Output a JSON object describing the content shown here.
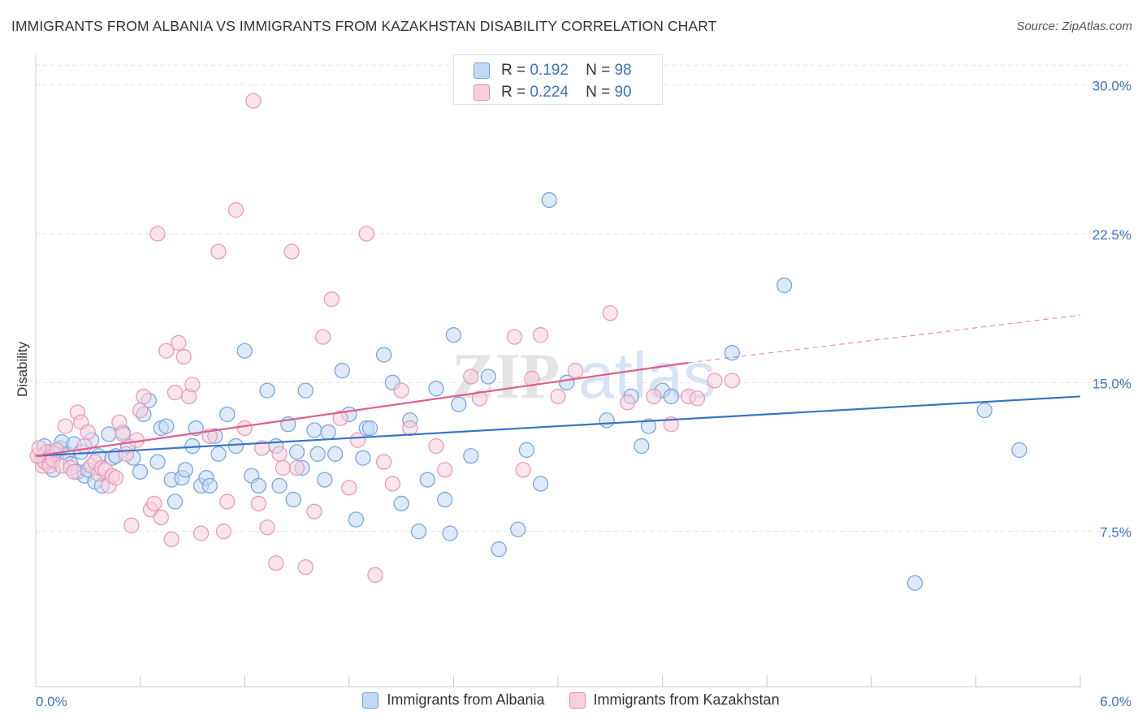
{
  "title": "IMMIGRANTS FROM ALBANIA VS IMMIGRANTS FROM KAZAKHSTAN DISABILITY CORRELATION CHART",
  "source": "Source: ZipAtlas.com",
  "watermark": {
    "zip": "ZIP",
    "atlas": "atlas"
  },
  "stats": [
    {
      "r_label": "R =",
      "r": "0.192",
      "n_label": "N =",
      "n": "98",
      "color": "#6a9fe0",
      "fill": "#c3d8f5"
    },
    {
      "r_label": "R =",
      "r": "0.224",
      "n_label": "N =",
      "n": "90",
      "color": "#e88aa8",
      "fill": "#f8cfdc"
    }
  ],
  "legend": [
    {
      "label": "Immigrants from Albania",
      "color": "#6a9fe0",
      "fill": "#c3d8f5"
    },
    {
      "label": "Immigrants from Kazakhstan",
      "color": "#e88aa8",
      "fill": "#f8cfdc"
    }
  ],
  "chart_data": {
    "type": "scatter",
    "title": "IMMIGRANTS FROM ALBANIA VS IMMIGRANTS FROM KAZAKHSTAN DISABILITY CORRELATION CHART",
    "xlabel": "",
    "ylabel": "Disability",
    "xlim": [
      0,
      6
    ],
    "ylim": [
      0,
      31.5
    ],
    "x_tick_labels": [
      "0.0%",
      "6.0%"
    ],
    "y_ticks": [
      7.5,
      15.0,
      22.5,
      30.0
    ],
    "y_tick_labels": [
      "7.5%",
      "15.0%",
      "22.5%",
      "30.0%"
    ],
    "grid": true,
    "legend_position": "bottom",
    "series": [
      {
        "name": "Immigrants from Albania",
        "color": "#3a73c4",
        "fill": "#c3d8f5",
        "trend": {
          "x": [
            0.0,
            6.0
          ],
          "y": [
            11.3,
            14.3
          ],
          "style": "solid"
        },
        "points": [
          [
            0.04,
            11.3
          ],
          [
            0.05,
            11.8
          ],
          [
            0.06,
            11.0
          ],
          [
            0.07,
            11.5
          ],
          [
            0.08,
            11.2
          ],
          [
            0.09,
            11.0
          ],
          [
            0.1,
            10.6
          ],
          [
            0.12,
            11.4
          ],
          [
            0.14,
            11.7
          ],
          [
            0.15,
            12.0
          ],
          [
            0.18,
            11.4
          ],
          [
            0.2,
            10.9
          ],
          [
            0.22,
            11.9
          ],
          [
            0.24,
            10.5
          ],
          [
            0.26,
            11.5
          ],
          [
            0.28,
            10.3
          ],
          [
            0.3,
            10.6
          ],
          [
            0.32,
            12.1
          ],
          [
            0.34,
            10.0
          ],
          [
            0.36,
            11.3
          ],
          [
            0.38,
            9.8
          ],
          [
            0.42,
            12.4
          ],
          [
            0.44,
            11.2
          ],
          [
            0.46,
            11.3
          ],
          [
            0.5,
            12.5
          ],
          [
            0.53,
            11.8
          ],
          [
            0.56,
            11.2
          ],
          [
            0.6,
            10.5
          ],
          [
            0.62,
            13.4
          ],
          [
            0.65,
            14.1
          ],
          [
            0.7,
            11.0
          ],
          [
            0.72,
            12.7
          ],
          [
            0.75,
            12.8
          ],
          [
            0.78,
            10.1
          ],
          [
            0.8,
            9.0
          ],
          [
            0.84,
            10.2
          ],
          [
            0.86,
            10.6
          ],
          [
            0.9,
            11.8
          ],
          [
            0.92,
            12.7
          ],
          [
            0.95,
            9.8
          ],
          [
            0.98,
            10.2
          ],
          [
            1.0,
            9.8
          ],
          [
            1.03,
            12.3
          ],
          [
            1.05,
            11.4
          ],
          [
            1.1,
            13.4
          ],
          [
            1.15,
            11.8
          ],
          [
            1.2,
            16.6
          ],
          [
            1.24,
            10.3
          ],
          [
            1.28,
            9.8
          ],
          [
            1.33,
            14.6
          ],
          [
            1.38,
            11.8
          ],
          [
            1.4,
            9.8
          ],
          [
            1.45,
            12.9
          ],
          [
            1.48,
            9.1
          ],
          [
            1.5,
            11.5
          ],
          [
            1.53,
            10.7
          ],
          [
            1.55,
            14.6
          ],
          [
            1.6,
            12.6
          ],
          [
            1.62,
            11.4
          ],
          [
            1.66,
            10.1
          ],
          [
            1.68,
            12.5
          ],
          [
            1.72,
            11.4
          ],
          [
            1.76,
            15.6
          ],
          [
            1.8,
            13.4
          ],
          [
            1.84,
            8.1
          ],
          [
            1.88,
            11.2
          ],
          [
            1.9,
            12.7
          ],
          [
            1.92,
            12.7
          ],
          [
            2.0,
            16.4
          ],
          [
            2.05,
            15.0
          ],
          [
            2.1,
            8.9
          ],
          [
            2.15,
            13.1
          ],
          [
            2.2,
            7.5
          ],
          [
            2.25,
            10.1
          ],
          [
            2.3,
            14.7
          ],
          [
            2.35,
            9.1
          ],
          [
            2.38,
            7.4
          ],
          [
            2.4,
            17.4
          ],
          [
            2.43,
            13.9
          ],
          [
            2.5,
            11.3
          ],
          [
            2.6,
            15.3
          ],
          [
            2.66,
            6.6
          ],
          [
            2.77,
            7.6
          ],
          [
            2.82,
            11.6
          ],
          [
            2.9,
            9.9
          ],
          [
            2.95,
            24.2
          ],
          [
            3.05,
            15.0
          ],
          [
            3.28,
            13.1
          ],
          [
            3.42,
            14.3
          ],
          [
            3.48,
            11.8
          ],
          [
            3.52,
            12.8
          ],
          [
            3.6,
            14.6
          ],
          [
            3.65,
            14.3
          ],
          [
            4.0,
            16.5
          ],
          [
            4.3,
            19.9
          ],
          [
            5.05,
            4.9
          ],
          [
            5.45,
            13.6
          ],
          [
            5.65,
            11.6
          ]
        ]
      },
      {
        "name": "Immigrants from Kazakhstan",
        "color": "#e05f8a",
        "fill": "#f8cfdc",
        "trend": {
          "x": [
            0.0,
            3.75
          ],
          "y": [
            11.3,
            16.0
          ],
          "style": "solid",
          "dashed_extension": {
            "x": [
              3.75,
              6.0
            ],
            "y": [
              16.0,
              18.4
            ]
          }
        },
        "points": [
          [
            0.03,
            11.2
          ],
          [
            0.04,
            10.8
          ],
          [
            0.05,
            11.0
          ],
          [
            0.06,
            11.5
          ],
          [
            0.08,
            10.8
          ],
          [
            0.1,
            11.1
          ],
          [
            0.12,
            11.6
          ],
          [
            0.15,
            10.8
          ],
          [
            0.17,
            12.8
          ],
          [
            0.2,
            10.7
          ],
          [
            0.22,
            10.5
          ],
          [
            0.24,
            13.5
          ],
          [
            0.26,
            13.0
          ],
          [
            0.28,
            11.8
          ],
          [
            0.3,
            12.5
          ],
          [
            0.32,
            10.8
          ],
          [
            0.34,
            11.0
          ],
          [
            0.36,
            10.4
          ],
          [
            0.38,
            10.7
          ],
          [
            0.4,
            10.6
          ],
          [
            0.42,
            9.8
          ],
          [
            0.44,
            10.3
          ],
          [
            0.46,
            10.2
          ],
          [
            0.48,
            13.0
          ],
          [
            0.5,
            12.4
          ],
          [
            0.52,
            11.4
          ],
          [
            0.55,
            7.8
          ],
          [
            0.58,
            12.1
          ],
          [
            0.6,
            13.6
          ],
          [
            0.62,
            14.3
          ],
          [
            0.66,
            8.6
          ],
          [
            0.68,
            8.9
          ],
          [
            0.7,
            22.5
          ],
          [
            0.72,
            8.2
          ],
          [
            0.75,
            16.6
          ],
          [
            0.78,
            7.1
          ],
          [
            0.8,
            14.5
          ],
          [
            0.82,
            17.0
          ],
          [
            0.85,
            16.3
          ],
          [
            0.88,
            14.3
          ],
          [
            0.9,
            14.9
          ],
          [
            0.95,
            7.4
          ],
          [
            1.0,
            12.3
          ],
          [
            1.05,
            21.6
          ],
          [
            1.08,
            7.5
          ],
          [
            1.1,
            9.0
          ],
          [
            1.15,
            23.7
          ],
          [
            1.2,
            12.7
          ],
          [
            1.25,
            29.2
          ],
          [
            1.28,
            8.9
          ],
          [
            1.3,
            11.7
          ],
          [
            1.33,
            7.7
          ],
          [
            1.38,
            5.9
          ],
          [
            1.4,
            11.4
          ],
          [
            1.42,
            10.7
          ],
          [
            1.47,
            21.6
          ],
          [
            1.5,
            10.7
          ],
          [
            1.55,
            5.7
          ],
          [
            1.6,
            8.5
          ],
          [
            1.65,
            17.3
          ],
          [
            1.7,
            19.2
          ],
          [
            1.75,
            13.2
          ],
          [
            1.8,
            9.7
          ],
          [
            1.85,
            12.1
          ],
          [
            1.9,
            22.5
          ],
          [
            1.95,
            5.3
          ],
          [
            2.0,
            11.0
          ],
          [
            2.05,
            9.9
          ],
          [
            2.1,
            14.6
          ],
          [
            2.15,
            12.7
          ],
          [
            2.3,
            11.8
          ],
          [
            2.35,
            10.6
          ],
          [
            2.5,
            15.3
          ],
          [
            2.55,
            14.2
          ],
          [
            2.75,
            17.3
          ],
          [
            2.8,
            10.6
          ],
          [
            2.85,
            15.2
          ],
          [
            2.9,
            17.4
          ],
          [
            3.0,
            14.3
          ],
          [
            3.1,
            15.6
          ],
          [
            3.3,
            18.5
          ],
          [
            3.4,
            14.0
          ],
          [
            3.55,
            14.3
          ],
          [
            3.65,
            12.9
          ],
          [
            3.75,
            14.3
          ],
          [
            3.8,
            14.2
          ],
          [
            3.9,
            15.1
          ],
          [
            4.0,
            15.1
          ],
          [
            0.01,
            11.3
          ],
          [
            0.02,
            11.7
          ]
        ]
      }
    ]
  }
}
